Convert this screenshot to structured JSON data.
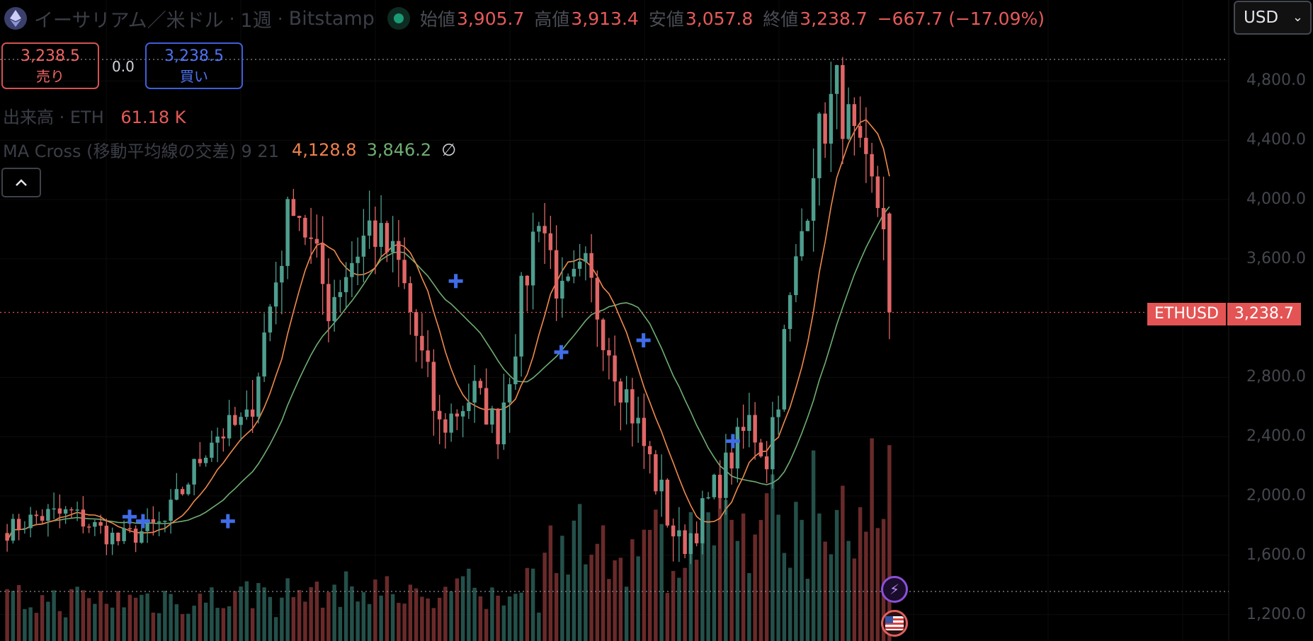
{
  "header": {
    "symbol_title": "イーサリアム／米ドル",
    "interval": "1週",
    "exchange": "Bitstamp",
    "separator": "·",
    "ohlc": {
      "open_label": "始値",
      "open": "3,905.7",
      "high_label": "高値",
      "high": "3,913.4",
      "low_label": "安値",
      "low": "3,057.8",
      "close_label": "終値",
      "close": "3,238.7"
    },
    "change": "−667.7 (−17.09%)"
  },
  "currency_selector": {
    "value": "USD"
  },
  "trade": {
    "sell_price": "3,238.5",
    "sell_label": "売り",
    "spread": "0.0",
    "buy_price": "3,238.5",
    "buy_label": "買い"
  },
  "volume_indicator": {
    "label": "出来高 · ETH",
    "value": "61.18 K"
  },
  "ma_indicator": {
    "label": "MA Cross (移動平均線の交差) 9 21",
    "fast": "4,128.8",
    "slow": "3,846.2",
    "extra": "∅"
  },
  "price_tag": {
    "symbol": "ETHUSD",
    "price": "3,238.7"
  },
  "colors": {
    "up": "#4e9e8e",
    "down": "#e06666",
    "ma_fast": "#f08a4b",
    "ma_slow": "#6fae72",
    "cross": "#3f6ce8"
  },
  "chart_data": {
    "type": "candlestick",
    "price_axis_labels": [
      "4,800.0",
      "4,400.0",
      "4,000.0",
      "3,600.0",
      "2,800.0",
      "2,400.0",
      "2,000.0",
      "1,600.0",
      "1,200.0"
    ],
    "y_ticks": [
      4800,
      4400,
      4000,
      3600,
      2800,
      2400,
      2000,
      1600,
      1200
    ],
    "ylim": [
      1050,
      5060
    ],
    "high_marker": 4950,
    "last_price": 3238.7,
    "segments": [
      {
        "n": 6,
        "to": 1860,
        "amp": 70
      },
      {
        "n": 6,
        "to": 1880,
        "amp": 90
      },
      {
        "n": 8,
        "to": 1700,
        "amp": 80
      },
      {
        "n": 8,
        "to": 1820,
        "amp": 80
      },
      {
        "n": 8,
        "to": 2400,
        "amp": 100
      },
      {
        "n": 6,
        "to": 2500,
        "amp": 110
      },
      {
        "n": 8,
        "to": 4050,
        "amp": 180
      },
      {
        "n": 6,
        "to": 3300,
        "amp": 180
      },
      {
        "n": 7,
        "to": 3820,
        "amp": 170
      },
      {
        "n": 5,
        "to": 3550,
        "amp": 160
      },
      {
        "n": 7,
        "to": 2450,
        "amp": 160
      },
      {
        "n": 6,
        "to": 2700,
        "amp": 130
      },
      {
        "n": 4,
        "to": 2450,
        "amp": 120
      },
      {
        "n": 7,
        "to": 3950,
        "amp": 180
      },
      {
        "n": 4,
        "to": 3300,
        "amp": 180
      },
      {
        "n": 4,
        "to": 3500,
        "amp": 170
      },
      {
        "n": 6,
        "to": 2800,
        "amp": 170
      },
      {
        "n": 10,
        "to": 1650,
        "amp": 150
      },
      {
        "n": 3,
        "to": 1800,
        "amp": 120
      },
      {
        "n": 9,
        "to": 2500,
        "amp": 130
      },
      {
        "n": 3,
        "to": 2250,
        "amp": 120
      },
      {
        "n": 8,
        "to": 4300,
        "amp": 200
      },
      {
        "n": 4,
        "to": 4750,
        "amp": 200
      },
      {
        "n": 4,
        "to": 4200,
        "amp": 220
      },
      {
        "n": 4,
        "to": 3900,
        "amp": 200
      },
      {
        "n": 1,
        "to": 3238.7,
        "amp": 200
      }
    ],
    "start_price": 1750,
    "ma_periods": [
      9,
      21
    ],
    "cross_markers_price": [
      1860,
      1830,
      1830,
      3450,
      2970,
      3050,
      2370
    ]
  }
}
